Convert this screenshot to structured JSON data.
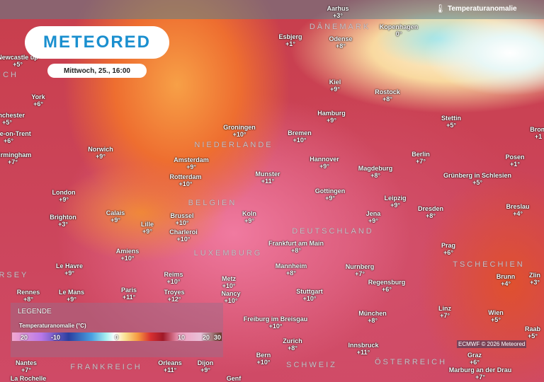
{
  "header": {
    "title": "Temperaturanomalie",
    "thermometer_icon": "thermometer-icon"
  },
  "logo": {
    "text": "METEORED"
  },
  "date": "Mittwoch, 25., 16:00",
  "legend": {
    "heading": "LEGENDE",
    "subtitle": "Temperaturanomalie (°C)",
    "ticks": [
      "20",
      "-10",
      "0",
      "10",
      "20",
      "30"
    ],
    "colors": [
      "#f2a8d0",
      "#b878e8",
      "#2a3fa0",
      "#4aa0e0",
      "#ffffff",
      "#f9e090",
      "#f59a40",
      "#d83030",
      "#a01828",
      "#f0a0c0",
      "#6a3a2a"
    ]
  },
  "copyright": "ECMWF © 2026 Meteored",
  "countries": [
    "DÄNEMARK",
    "NIEDERLANDE",
    "BELGIEN",
    "LUXEMBURG",
    "DEUTSCHLAND",
    "TSCHECHIEN",
    "ÖSTERREICH",
    "SCHWEIZ",
    "FRANKREICH",
    "JERSEY",
    "ICH"
  ],
  "cities": [
    {
      "name": "Newcastle up",
      "value": "+5°"
    },
    {
      "name": "York",
      "value": "+6°"
    },
    {
      "name": "Manchester",
      "value": "+5°"
    },
    {
      "name": "Stoke-on-Trent",
      "value": "+6°"
    },
    {
      "name": "Birmingham",
      "value": "+7°"
    },
    {
      "name": "Norwich",
      "value": "+9°"
    },
    {
      "name": "London",
      "value": "+9°"
    },
    {
      "name": "Brighton",
      "value": "+3°"
    },
    {
      "name": "Calais",
      "value": "+9°"
    },
    {
      "name": "Lille",
      "value": "+9°"
    },
    {
      "name": "Brussel",
      "value": "+10°"
    },
    {
      "name": "Charleroi",
      "value": "+10°"
    },
    {
      "name": "Amiens",
      "value": "+10°"
    },
    {
      "name": "Le Havre",
      "value": "+9°"
    },
    {
      "name": "Paris",
      "value": "+11°"
    },
    {
      "name": "Reims",
      "value": "+10°"
    },
    {
      "name": "Metz",
      "value": "+10°"
    },
    {
      "name": "Nancy",
      "value": "+10°"
    },
    {
      "name": "Troyes",
      "value": "+12°"
    },
    {
      "name": "Rennes",
      "value": "+8°"
    },
    {
      "name": "Le Mans",
      "value": "+9°"
    },
    {
      "name": "Orleans",
      "value": "+11°"
    },
    {
      "name": "Dijon",
      "value": "+9°"
    },
    {
      "name": "Nantes",
      "value": "+7°"
    },
    {
      "name": "La Rochelle",
      "value": ""
    },
    {
      "name": "Groningen",
      "value": "+10°"
    },
    {
      "name": "Amsterdam",
      "value": "+9°"
    },
    {
      "name": "Rotterdam",
      "value": "+10°"
    },
    {
      "name": "Munster",
      "value": "+11°"
    },
    {
      "name": "Koln",
      "value": "+9°"
    },
    {
      "name": "Bremen",
      "value": "+10°"
    },
    {
      "name": "Hamburg",
      "value": "+9°"
    },
    {
      "name": "Kiel",
      "value": "+9°"
    },
    {
      "name": "Esbjerg",
      "value": "+1°"
    },
    {
      "name": "Odense",
      "value": "+8°"
    },
    {
      "name": "Aarhus",
      "value": "+3°"
    },
    {
      "name": "Kopenhagen",
      "value": "0°"
    },
    {
      "name": "Rostock",
      "value": "+8°"
    },
    {
      "name": "Stettin",
      "value": "+5°"
    },
    {
      "name": "Berlin",
      "value": "+7°"
    },
    {
      "name": "Hannover",
      "value": "+9°"
    },
    {
      "name": "Magdeburg",
      "value": "+8°"
    },
    {
      "name": "Grünberg in Schlesien",
      "value": "+5°"
    },
    {
      "name": "Posen",
      "value": "+1°"
    },
    {
      "name": "Brom",
      "value": "+1"
    },
    {
      "name": "Gottingen",
      "value": "+9°"
    },
    {
      "name": "Leipzig",
      "value": "+9°"
    },
    {
      "name": "Jena",
      "value": "+9°"
    },
    {
      "name": "Dresden",
      "value": "+8°"
    },
    {
      "name": "Breslau",
      "value": "+4°"
    },
    {
      "name": "Frankfurt am Main",
      "value": "+8°"
    },
    {
      "name": "Mannheim",
      "value": "+8°"
    },
    {
      "name": "Nurnberg",
      "value": "+7°"
    },
    {
      "name": "Regensburg",
      "value": "+6°"
    },
    {
      "name": "Stuttgart",
      "value": "+10°"
    },
    {
      "name": "Prag",
      "value": "+6°"
    },
    {
      "name": "Brunn",
      "value": "+4°"
    },
    {
      "name": "Zlin",
      "value": "+3°"
    },
    {
      "name": "München",
      "value": "+8°"
    },
    {
      "name": "Freiburg im Breisgau",
      "value": "+10°"
    },
    {
      "name": "Linz",
      "value": "+7°"
    },
    {
      "name": "Wien",
      "value": "+5°"
    },
    {
      "name": "Raab",
      "value": "+5°"
    },
    {
      "name": "Zurich",
      "value": "+8°"
    },
    {
      "name": "Innsbruck",
      "value": "+11°"
    },
    {
      "name": "Graz",
      "value": "+6°"
    },
    {
      "name": "Bern",
      "value": "+10°"
    },
    {
      "name": "Marburg an der Drau",
      "value": "+7°"
    },
    {
      "name": "Genf",
      "value": ""
    }
  ]
}
